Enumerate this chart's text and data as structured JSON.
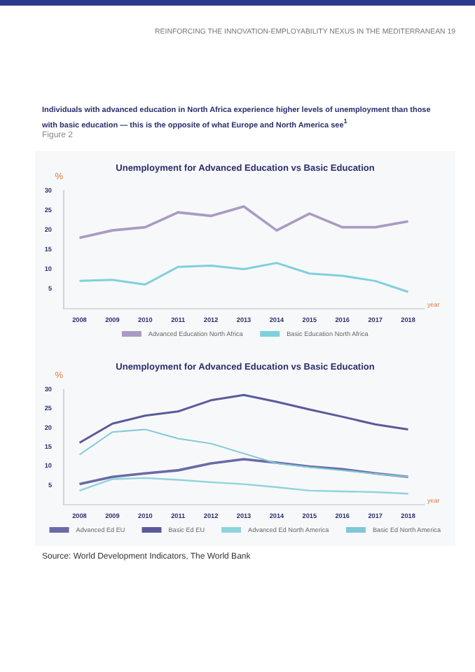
{
  "chart_data": [
    {
      "type": "line",
      "title": "Unemployment for Advanced Education vs Basic Education",
      "ylabel": "%",
      "xlabel": "year",
      "annotations": [
        "REINFORCING THE INNOVATION-EMPLOYABILITY NEXUS IN THE MEDITERRANEAN   19",
        "Individuals with advanced education in North Africa experience higher levels of unemployment than those with basic education — this is the opposite of what Europe and North America see$^{1}$",
        "Figure 2"
      ],
      "categories": [
        "2008",
        "2009",
        "2010",
        "2011",
        "2012",
        "2013",
        "2014",
        "2015",
        "2016",
        "2017",
        "2018"
      ],
      "series": [
        {
          "name": "Advanced Education North Africa",
          "color": "#a99bc4",
          "values": [
            17.9,
            19.8,
            20.6,
            24.4,
            23.5,
            25.9,
            19.8,
            24.1,
            20.6,
            20.6,
            22.1
          ]
        },
        {
          "name": "Basic Education North Africa",
          "color": "#7fd0dc",
          "values": [
            6.9,
            7.2,
            6.0,
            10.5,
            10.8,
            9.9,
            11.5,
            8.8,
            8.2,
            6.9,
            4.1
          ]
        }
      ],
      "ylim": [
        0,
        30
      ],
      "yticks": [
        5,
        10,
        15,
        20,
        25,
        30
      ],
      "legend": "bottom",
      "grid": false
    },
    {
      "type": "line",
      "title": "Unemployment for Advanced Education vs Basic Education",
      "ylabel": "%",
      "xlabel": "year",
      "annotations": [
        "Source: World Development Indicators, The World Bank"
      ],
      "categories": [
        "2008",
        "2009",
        "2010",
        "2011",
        "2012",
        "2013",
        "2014",
        "2015",
        "2016",
        "2017",
        "2018"
      ],
      "series": [
        {
          "name": "Advanced Ed EU",
          "color": "#6a6aa8",
          "values": [
            5.2,
            7.1,
            8.0,
            8.8,
            10.6,
            11.7,
            10.8,
            9.8,
            9.1,
            8.0,
            7.1
          ]
        },
        {
          "name": "Basic Ed EU",
          "color": "#5a5a9a",
          "values": [
            16.0,
            21.0,
            23.1,
            24.2,
            27.1,
            28.5,
            26.7,
            24.7,
            22.8,
            20.8,
            19.5
          ]
        },
        {
          "name": "Advanced Ed North America",
          "color": "#8fd3dc",
          "values": [
            3.5,
            6.5,
            6.8,
            6.3,
            5.7,
            5.2,
            4.4,
            3.5,
            3.3,
            3.1,
            2.7
          ]
        },
        {
          "name": "Basic Ed North America",
          "color": "#7fc8d6",
          "values": [
            12.9,
            18.8,
            19.5,
            17.1,
            15.8,
            13.2,
            10.6,
            9.6,
            8.8,
            7.9,
            7.1
          ]
        }
      ],
      "ylim": [
        0,
        30
      ],
      "yticks": [
        5,
        10,
        15,
        20,
        25,
        30
      ],
      "legend": "bottom",
      "grid": false
    }
  ]
}
